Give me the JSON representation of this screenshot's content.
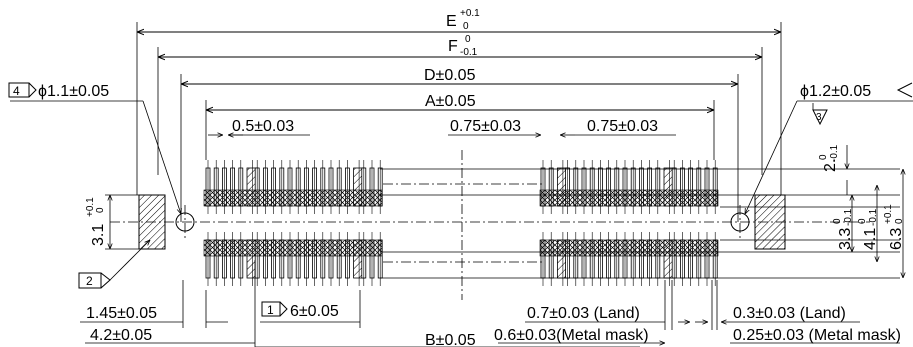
{
  "dimensions": {
    "E": {
      "label": "E",
      "upper": "+0.1",
      "lower": "0"
    },
    "F": {
      "label": "F",
      "upper": "0",
      "lower": "-0.1"
    },
    "D": {
      "label": "D±0.05"
    },
    "A": {
      "label": "A±0.05"
    },
    "B": {
      "label": "B±0.05"
    },
    "pitch_05": {
      "label": "0.5±0.03"
    },
    "pitch_075_left": {
      "label": "0.75±0.03"
    },
    "pitch_075_right": {
      "label": "0.75±0.03"
    },
    "hole_left": {
      "tag": "4",
      "label": "ϕ1.1±0.05"
    },
    "hole_right": {
      "tag": "4",
      "label": "ϕ1.2±0.05"
    },
    "left_block_height": {
      "main": "3.1",
      "upper": "+0.1",
      "lower": "0"
    },
    "right_2": {
      "main": "2.",
      "upper": "0",
      "lower": "-0.1"
    },
    "right_33": {
      "main": "3.3",
      "upper": "0",
      "lower": "-0.1"
    },
    "right_41": {
      "main": "4.1",
      "upper": "0",
      "lower": "-0.1"
    },
    "right_63": {
      "main": "6.3",
      "upper": "+0.1",
      "lower": "0"
    },
    "dim_145": {
      "label": "1.45±0.05"
    },
    "dim_42": {
      "label": "4.2±0.05"
    },
    "dim_6": {
      "tag": "1",
      "label": "6±0.05"
    },
    "land_left": {
      "label": "0.7±0.03 (Land)"
    },
    "mask_left": {
      "label": "0.6±0.03(Metal mask)"
    },
    "land_right": {
      "label": "0.3±0.03 (Land)"
    },
    "mask_right": {
      "label": "0.25±0.03 (Metal mask)"
    },
    "flag_2": {
      "tag": "2"
    },
    "flag_3": {
      "tag": "3"
    }
  }
}
